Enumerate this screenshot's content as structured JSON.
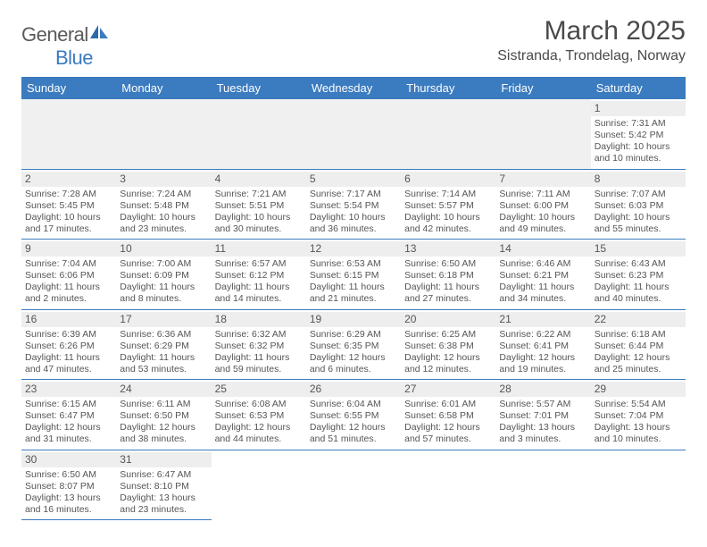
{
  "logo": {
    "text1": "General",
    "text2": "Blue"
  },
  "title": "March 2025",
  "location": "Sistranda, Trondelag, Norway",
  "colors": {
    "header_bg": "#3b7bbf",
    "header_text": "#ffffff",
    "text": "#4a4a4a",
    "daynum_bg": "#eeeeee",
    "row_border": "#3b7bbf",
    "empty_bg": "#f0f0f0"
  },
  "columns": [
    "Sunday",
    "Monday",
    "Tuesday",
    "Wednesday",
    "Thursday",
    "Friday",
    "Saturday"
  ],
  "weeks": [
    [
      null,
      null,
      null,
      null,
      null,
      null,
      {
        "n": "1",
        "sr": "7:31 AM",
        "ss": "5:42 PM",
        "dl": "10 hours and 10 minutes."
      }
    ],
    [
      {
        "n": "2",
        "sr": "7:28 AM",
        "ss": "5:45 PM",
        "dl": "10 hours and 17 minutes."
      },
      {
        "n": "3",
        "sr": "7:24 AM",
        "ss": "5:48 PM",
        "dl": "10 hours and 23 minutes."
      },
      {
        "n": "4",
        "sr": "7:21 AM",
        "ss": "5:51 PM",
        "dl": "10 hours and 30 minutes."
      },
      {
        "n": "5",
        "sr": "7:17 AM",
        "ss": "5:54 PM",
        "dl": "10 hours and 36 minutes."
      },
      {
        "n": "6",
        "sr": "7:14 AM",
        "ss": "5:57 PM",
        "dl": "10 hours and 42 minutes."
      },
      {
        "n": "7",
        "sr": "7:11 AM",
        "ss": "6:00 PM",
        "dl": "10 hours and 49 minutes."
      },
      {
        "n": "8",
        "sr": "7:07 AM",
        "ss": "6:03 PM",
        "dl": "10 hours and 55 minutes."
      }
    ],
    [
      {
        "n": "9",
        "sr": "7:04 AM",
        "ss": "6:06 PM",
        "dl": "11 hours and 2 minutes."
      },
      {
        "n": "10",
        "sr": "7:00 AM",
        "ss": "6:09 PM",
        "dl": "11 hours and 8 minutes."
      },
      {
        "n": "11",
        "sr": "6:57 AM",
        "ss": "6:12 PM",
        "dl": "11 hours and 14 minutes."
      },
      {
        "n": "12",
        "sr": "6:53 AM",
        "ss": "6:15 PM",
        "dl": "11 hours and 21 minutes."
      },
      {
        "n": "13",
        "sr": "6:50 AM",
        "ss": "6:18 PM",
        "dl": "11 hours and 27 minutes."
      },
      {
        "n": "14",
        "sr": "6:46 AM",
        "ss": "6:21 PM",
        "dl": "11 hours and 34 minutes."
      },
      {
        "n": "15",
        "sr": "6:43 AM",
        "ss": "6:23 PM",
        "dl": "11 hours and 40 minutes."
      }
    ],
    [
      {
        "n": "16",
        "sr": "6:39 AM",
        "ss": "6:26 PM",
        "dl": "11 hours and 47 minutes."
      },
      {
        "n": "17",
        "sr": "6:36 AM",
        "ss": "6:29 PM",
        "dl": "11 hours and 53 minutes."
      },
      {
        "n": "18",
        "sr": "6:32 AM",
        "ss": "6:32 PM",
        "dl": "11 hours and 59 minutes."
      },
      {
        "n": "19",
        "sr": "6:29 AM",
        "ss": "6:35 PM",
        "dl": "12 hours and 6 minutes."
      },
      {
        "n": "20",
        "sr": "6:25 AM",
        "ss": "6:38 PM",
        "dl": "12 hours and 12 minutes."
      },
      {
        "n": "21",
        "sr": "6:22 AM",
        "ss": "6:41 PM",
        "dl": "12 hours and 19 minutes."
      },
      {
        "n": "22",
        "sr": "6:18 AM",
        "ss": "6:44 PM",
        "dl": "12 hours and 25 minutes."
      }
    ],
    [
      {
        "n": "23",
        "sr": "6:15 AM",
        "ss": "6:47 PM",
        "dl": "12 hours and 31 minutes."
      },
      {
        "n": "24",
        "sr": "6:11 AM",
        "ss": "6:50 PM",
        "dl": "12 hours and 38 minutes."
      },
      {
        "n": "25",
        "sr": "6:08 AM",
        "ss": "6:53 PM",
        "dl": "12 hours and 44 minutes."
      },
      {
        "n": "26",
        "sr": "6:04 AM",
        "ss": "6:55 PM",
        "dl": "12 hours and 51 minutes."
      },
      {
        "n": "27",
        "sr": "6:01 AM",
        "ss": "6:58 PM",
        "dl": "12 hours and 57 minutes."
      },
      {
        "n": "28",
        "sr": "5:57 AM",
        "ss": "7:01 PM",
        "dl": "13 hours and 3 minutes."
      },
      {
        "n": "29",
        "sr": "5:54 AM",
        "ss": "7:04 PM",
        "dl": "13 hours and 10 minutes."
      }
    ],
    [
      {
        "n": "30",
        "sr": "6:50 AM",
        "ss": "8:07 PM",
        "dl": "13 hours and 16 minutes."
      },
      {
        "n": "31",
        "sr": "6:47 AM",
        "ss": "8:10 PM",
        "dl": "13 hours and 23 minutes."
      },
      null,
      null,
      null,
      null,
      null
    ]
  ],
  "labels": {
    "sunrise": "Sunrise:",
    "sunset": "Sunset:",
    "daylight": "Daylight:"
  }
}
